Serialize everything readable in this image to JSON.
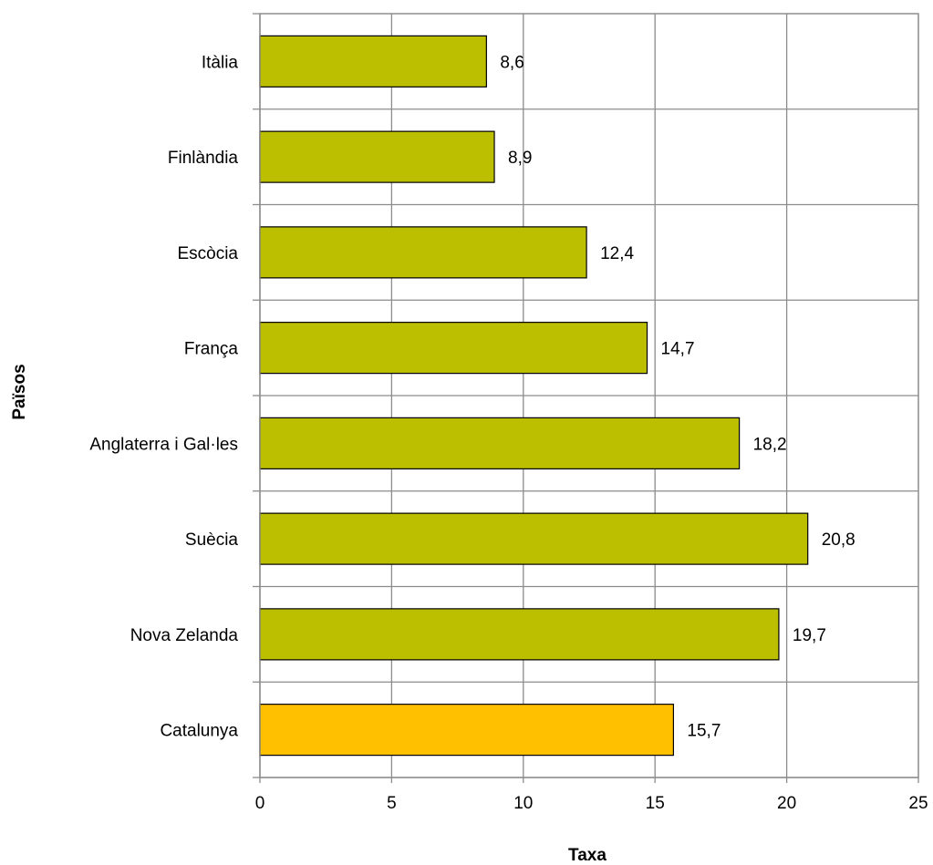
{
  "chart_data": {
    "type": "bar",
    "orientation": "horizontal",
    "categories": [
      "Itàlia",
      "Finlàndia",
      "Escòcia",
      "França",
      "Anglaterra i Gal·les",
      "Suècia",
      "Nova Zelanda",
      "Catalunya"
    ],
    "values": [
      8.6,
      8.9,
      12.4,
      14.7,
      18.2,
      20.8,
      19.7,
      15.7
    ],
    "value_labels": [
      "8,6",
      "8,9",
      "12,4",
      "14,7",
      "18,2",
      "20,8",
      "19,7",
      "15,7"
    ],
    "bar_colors": [
      "#bcbe00",
      "#bcbe00",
      "#bcbe00",
      "#bcbe00",
      "#bcbe00",
      "#bcbe00",
      "#bcbe00",
      "#ffc000"
    ],
    "xlabel": "Taxa",
    "ylabel": "Països",
    "xlim": [
      0,
      25
    ],
    "xticks": [
      0,
      5,
      10,
      15,
      20,
      25
    ],
    "grid": true,
    "legend": "none"
  }
}
